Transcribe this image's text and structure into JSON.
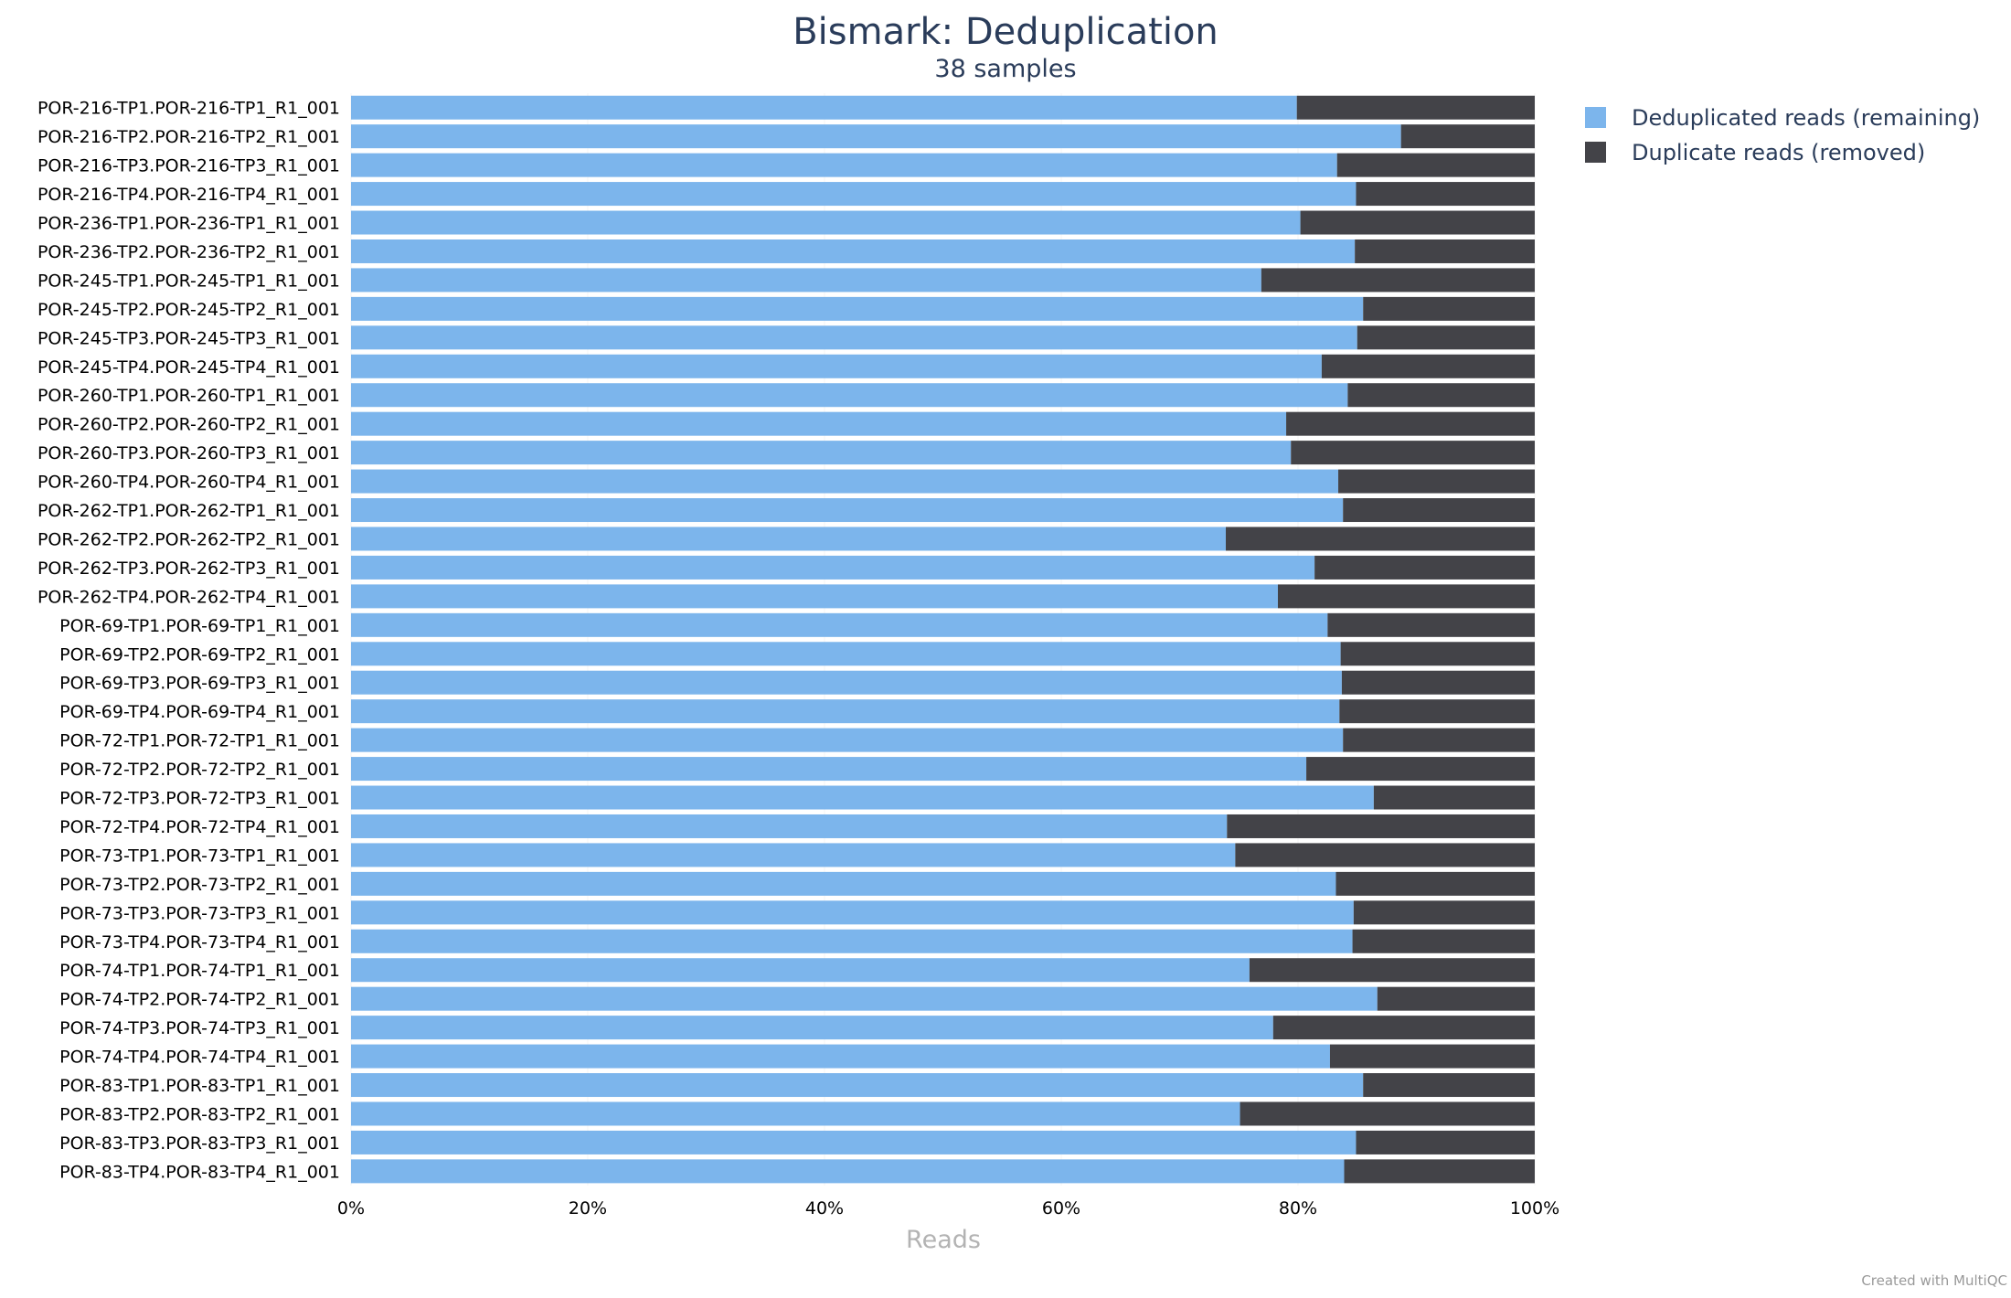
{
  "chart_data": {
    "type": "bar",
    "orientation": "horizontal",
    "stacked": "percent",
    "title": "Bismark: Deduplication",
    "subtitle": "38 samples",
    "xlabel": "Reads",
    "ylabel": "",
    "xlim": [
      0,
      100
    ],
    "x_ticks": [
      "0%",
      "20%",
      "40%",
      "60%",
      "80%",
      "100%"
    ],
    "grid": false,
    "legend_position": "top-right",
    "credit": "Created with MultiQC",
    "categories": [
      "POR-216-TP1.POR-216-TP1_R1_001",
      "POR-216-TP2.POR-216-TP2_R1_001",
      "POR-216-TP3.POR-216-TP3_R1_001",
      "POR-216-TP4.POR-216-TP4_R1_001",
      "POR-236-TP1.POR-236-TP1_R1_001",
      "POR-236-TP2.POR-236-TP2_R1_001",
      "POR-245-TP1.POR-245-TP1_R1_001",
      "POR-245-TP2.POR-245-TP2_R1_001",
      "POR-245-TP3.POR-245-TP3_R1_001",
      "POR-245-TP4.POR-245-TP4_R1_001",
      "POR-260-TP1.POR-260-TP1_R1_001",
      "POR-260-TP2.POR-260-TP2_R1_001",
      "POR-260-TP3.POR-260-TP3_R1_001",
      "POR-260-TP4.POR-260-TP4_R1_001",
      "POR-262-TP1.POR-262-TP1_R1_001",
      "POR-262-TP2.POR-262-TP2_R1_001",
      "POR-262-TP3.POR-262-TP3_R1_001",
      "POR-262-TP4.POR-262-TP4_R1_001",
      "POR-69-TP1.POR-69-TP1_R1_001",
      "POR-69-TP2.POR-69-TP2_R1_001",
      "POR-69-TP3.POR-69-TP3_R1_001",
      "POR-69-TP4.POR-69-TP4_R1_001",
      "POR-72-TP1.POR-72-TP1_R1_001",
      "POR-72-TP2.POR-72-TP2_R1_001",
      "POR-72-TP3.POR-72-TP3_R1_001",
      "POR-72-TP4.POR-72-TP4_R1_001",
      "POR-73-TP1.POR-73-TP1_R1_001",
      "POR-73-TP2.POR-73-TP2_R1_001",
      "POR-73-TP3.POR-73-TP3_R1_001",
      "POR-73-TP4.POR-73-TP4_R1_001",
      "POR-74-TP1.POR-74-TP1_R1_001",
      "POR-74-TP2.POR-74-TP2_R1_001",
      "POR-74-TP3.POR-74-TP3_R1_001",
      "POR-74-TP4.POR-74-TP4_R1_001",
      "POR-83-TP1.POR-83-TP1_R1_001",
      "POR-83-TP2.POR-83-TP2_R1_001",
      "POR-83-TP3.POR-83-TP3_R1_001",
      "POR-83-TP4.POR-83-TP4_R1_001"
    ],
    "series": [
      {
        "name": "Deduplicated reads (remaining)",
        "color": "#7cb5ec",
        "values": [
          79.9,
          88.7,
          83.3,
          84.9,
          80.2,
          84.8,
          76.9,
          85.5,
          85.0,
          82.0,
          84.2,
          79.0,
          79.4,
          83.4,
          83.8,
          73.9,
          81.4,
          78.3,
          82.5,
          83.6,
          83.7,
          83.5,
          83.8,
          80.7,
          86.4,
          74.0,
          74.7,
          83.2,
          84.7,
          84.6,
          75.9,
          86.7,
          77.9,
          82.7,
          85.5,
          75.1,
          84.9,
          83.9
        ]
      },
      {
        "name": "Duplicate reads (removed)",
        "color": "#434348",
        "values": [
          20.1,
          11.3,
          16.7,
          15.1,
          19.8,
          15.2,
          23.1,
          14.5,
          15.0,
          18.0,
          15.8,
          21.0,
          20.6,
          16.6,
          16.2,
          26.1,
          18.6,
          21.7,
          17.5,
          16.4,
          16.3,
          16.5,
          16.2,
          19.3,
          13.6,
          26.0,
          25.3,
          16.8,
          15.3,
          15.4,
          24.1,
          13.3,
          22.1,
          17.3,
          14.5,
          24.9,
          15.1,
          16.1
        ]
      }
    ]
  }
}
